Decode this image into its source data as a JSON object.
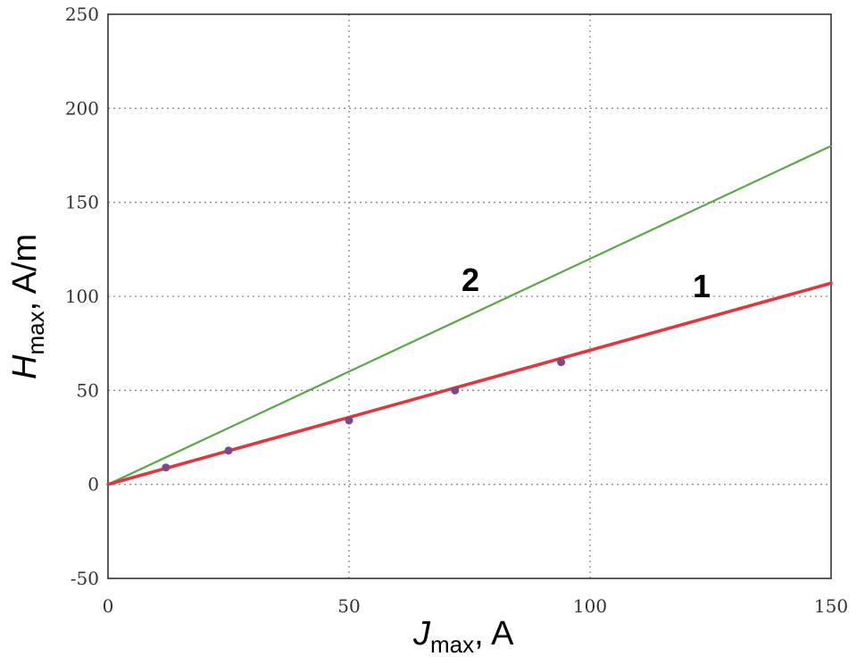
{
  "chart_data": {
    "type": "line",
    "xlabel": {
      "main": "J",
      "sub": "max",
      "unit": ", A"
    },
    "ylabel": {
      "main": "H",
      "sub": "max",
      "unit": ", A/m"
    },
    "xlim": [
      0,
      150
    ],
    "ylim": [
      -50,
      250
    ],
    "x_ticks": [
      "0",
      "50",
      "100",
      "150"
    ],
    "y_ticks": [
      "-50",
      "0",
      "50",
      "100",
      "150",
      "200",
      "250"
    ],
    "grid": true,
    "series": [
      {
        "name": "1",
        "color": "#e0363c",
        "x": [
          0,
          150
        ],
        "y": [
          0,
          107
        ],
        "markers": {
          "x": [
            12,
            25,
            50,
            72,
            94
          ],
          "y": [
            9,
            18,
            34,
            50,
            65
          ],
          "color": "#7a4a88"
        }
      },
      {
        "name": "2",
        "color": "#5aa845",
        "x": [
          0,
          150
        ],
        "y": [
          0,
          180
        ]
      }
    ]
  }
}
